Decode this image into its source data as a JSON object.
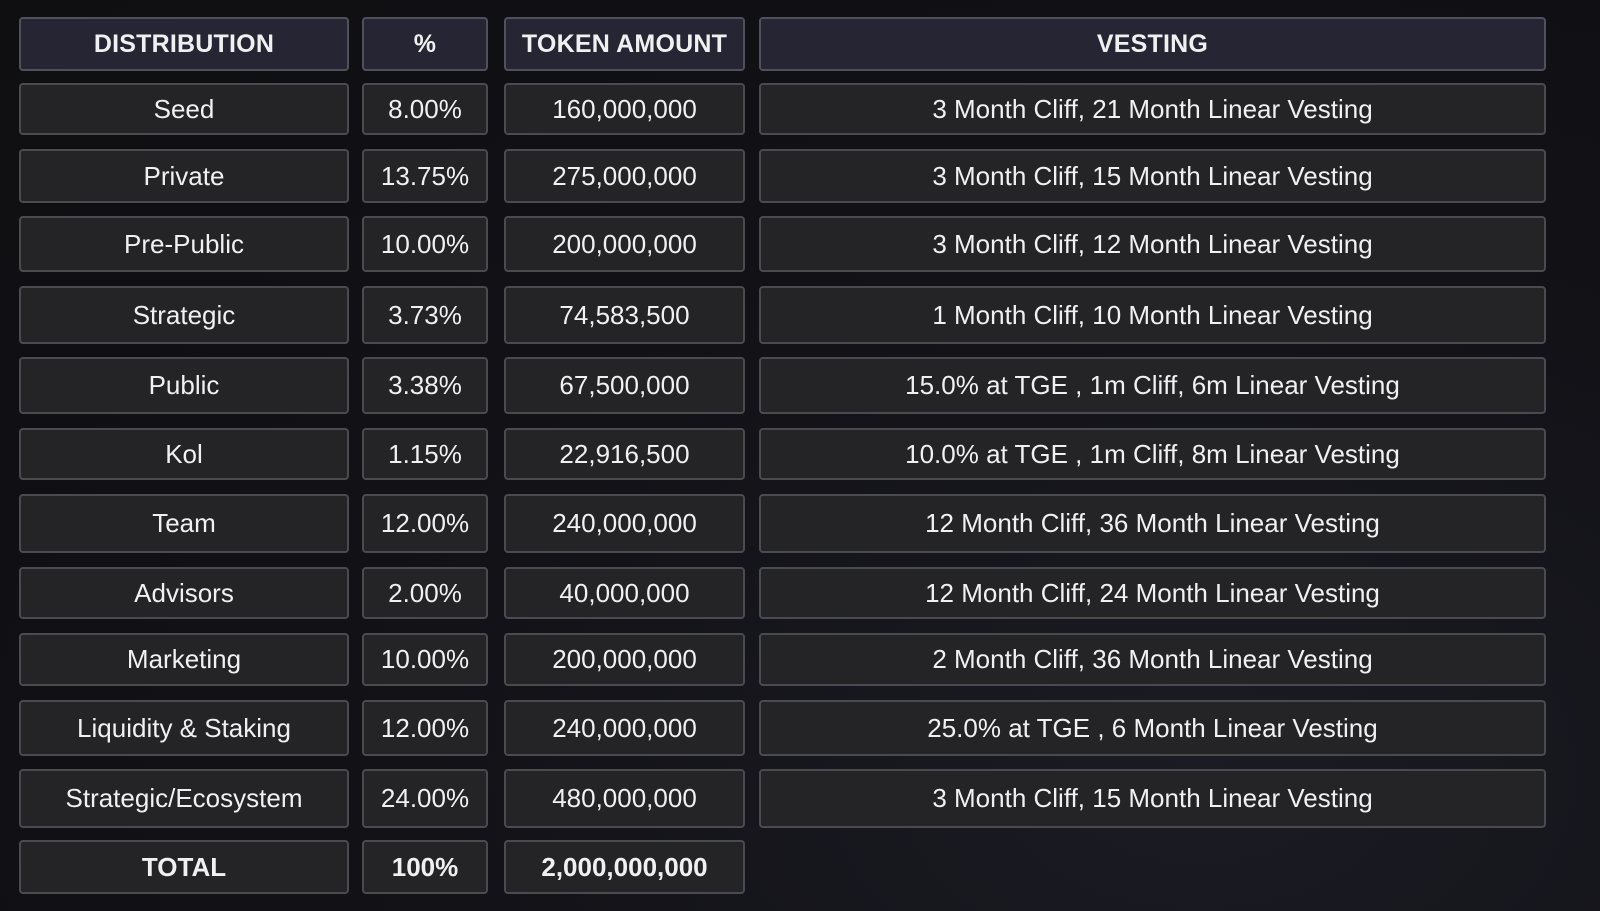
{
  "header": {
    "distribution": "DISTRIBUTION",
    "percent": "%",
    "token_amount": "TOKEN AMOUNT",
    "vesting": "VESTING"
  },
  "rows": [
    {
      "distribution": "Seed",
      "percent": "8.00%",
      "token_amount": "160,000,000",
      "vesting": "3 Month Cliff, 21 Month Linear Vesting"
    },
    {
      "distribution": "Private",
      "percent": "13.75%",
      "token_amount": "275,000,000",
      "vesting": "3 Month Cliff, 15 Month Linear Vesting"
    },
    {
      "distribution": "Pre-Public",
      "percent": "10.00%",
      "token_amount": "200,000,000",
      "vesting": "3 Month Cliff, 12 Month Linear Vesting"
    },
    {
      "distribution": "Strategic",
      "percent": "3.73%",
      "token_amount": "74,583,500",
      "vesting": "1 Month Cliff, 10 Month Linear Vesting"
    },
    {
      "distribution": "Public",
      "percent": "3.38%",
      "token_amount": "67,500,000",
      "vesting": "15.0% at TGE , 1m Cliff, 6m Linear Vesting"
    },
    {
      "distribution": "Kol",
      "percent": "1.15%",
      "token_amount": "22,916,500",
      "vesting": "10.0% at TGE , 1m Cliff, 8m Linear Vesting"
    },
    {
      "distribution": "Team",
      "percent": "12.00%",
      "token_amount": "240,000,000",
      "vesting": "12 Month Cliff, 36 Month Linear Vesting"
    },
    {
      "distribution": "Advisors",
      "percent": "2.00%",
      "token_amount": "40,000,000",
      "vesting": "12 Month Cliff, 24 Month Linear Vesting"
    },
    {
      "distribution": "Marketing",
      "percent": "10.00%",
      "token_amount": "200,000,000",
      "vesting": "2 Month Cliff, 36 Month Linear Vesting"
    },
    {
      "distribution": "Liquidity & Staking",
      "percent": "12.00%",
      "token_amount": "240,000,000",
      "vesting": "25.0% at TGE , 6 Month Linear Vesting"
    },
    {
      "distribution": "Strategic/Ecosystem",
      "percent": "24.00%",
      "token_amount": "480,000,000",
      "vesting": "3 Month Cliff, 15 Month Linear Vesting"
    }
  ],
  "total": {
    "distribution": "TOTAL",
    "percent": "100%",
    "token_amount": "2,000,000,000"
  }
}
